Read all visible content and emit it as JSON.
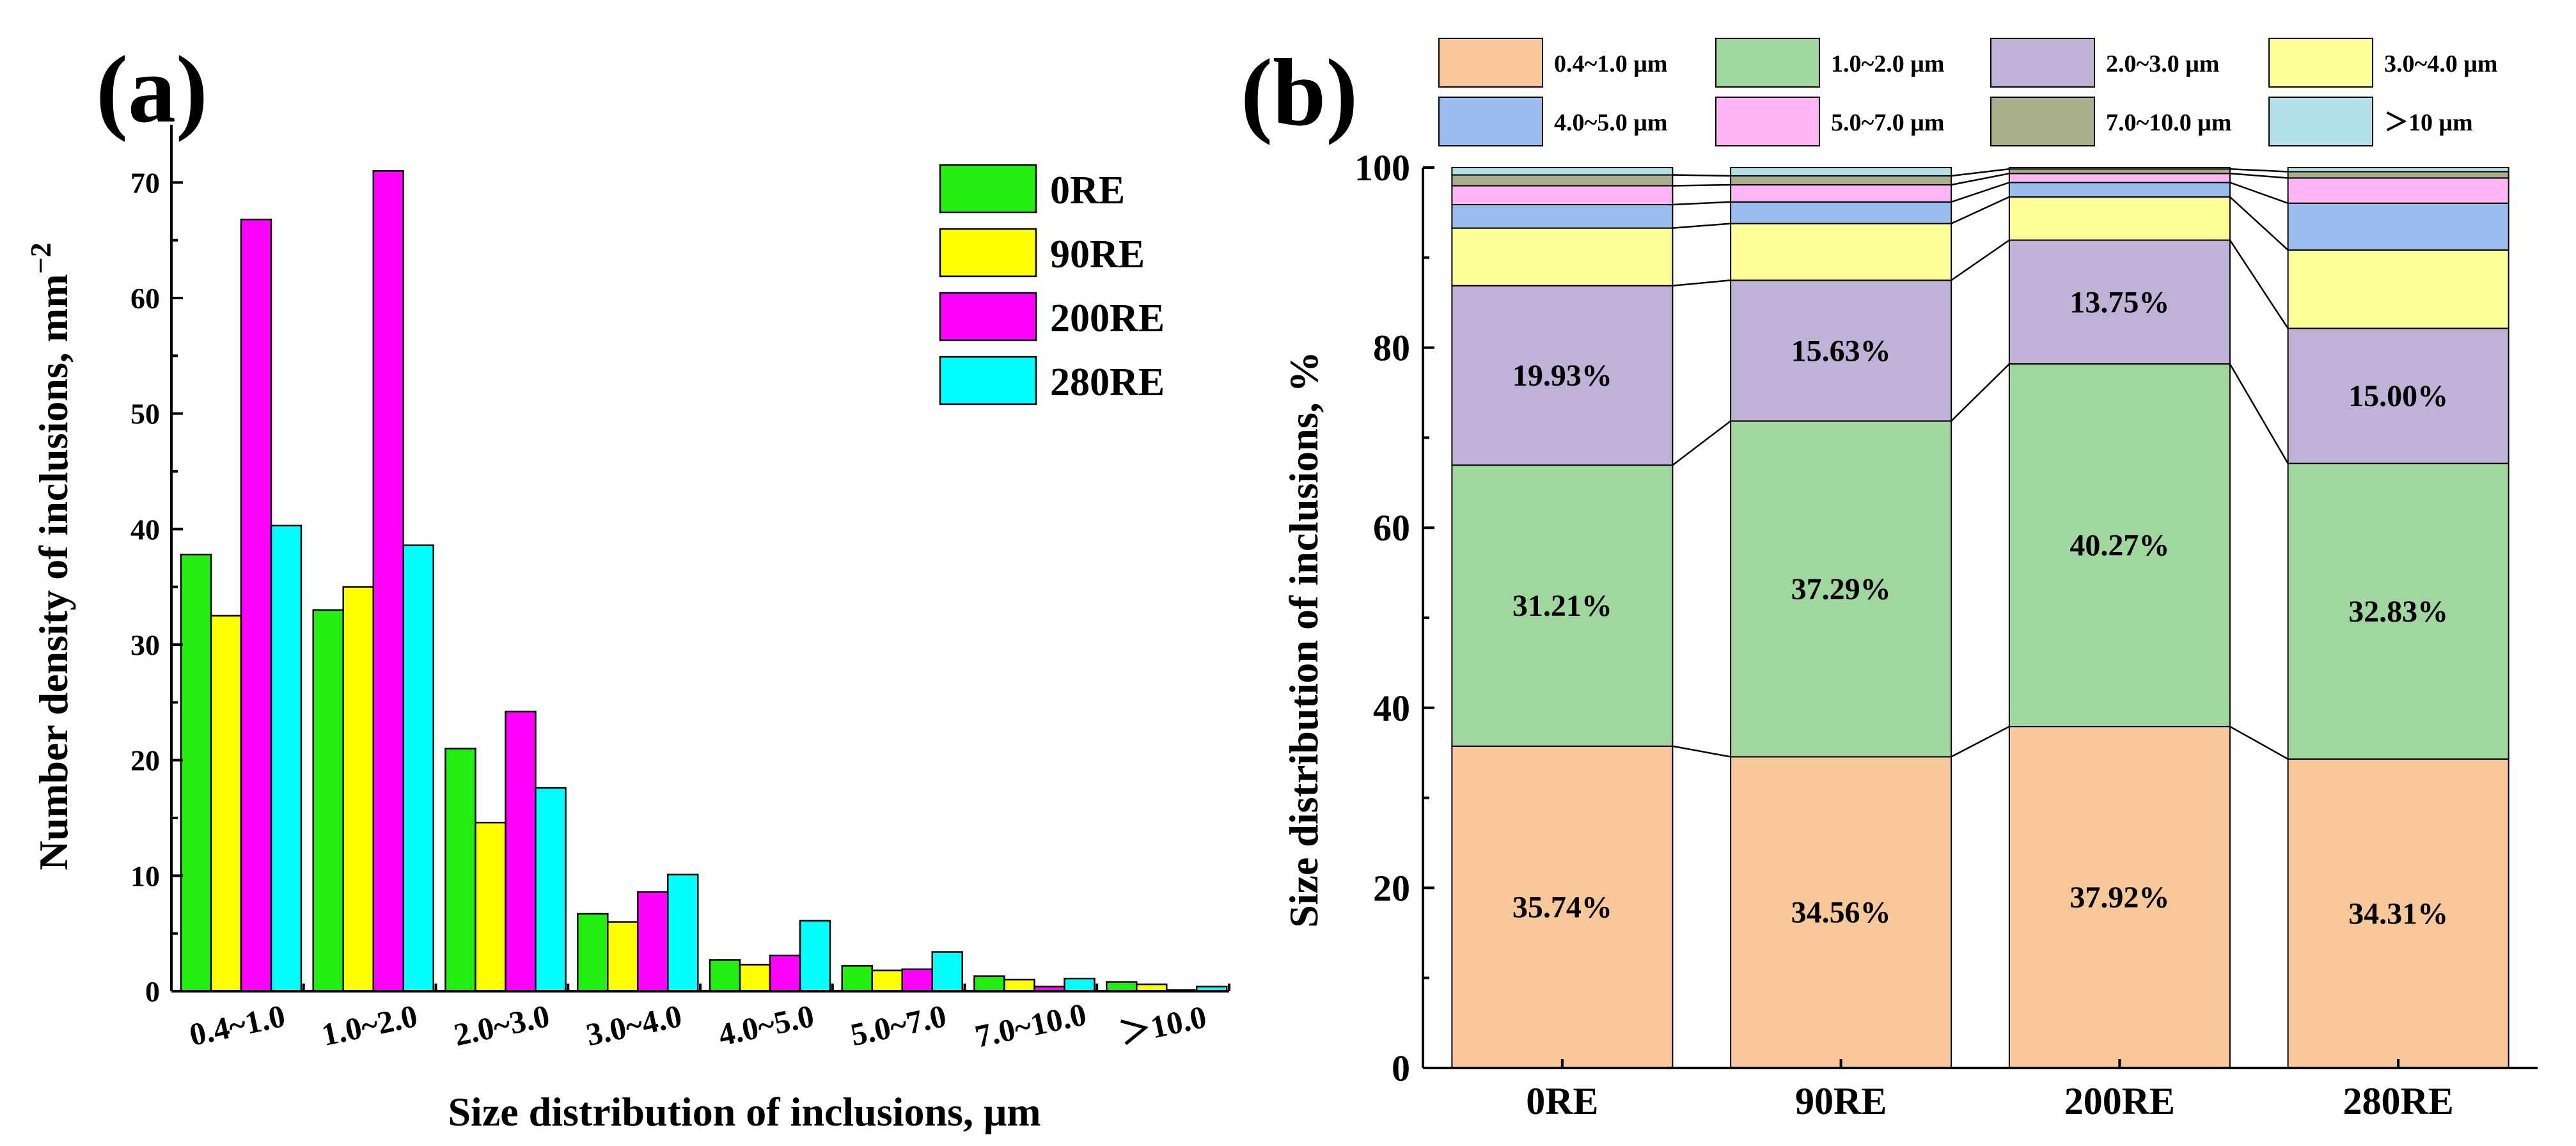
{
  "panels": {
    "a": "(a)",
    "b": "(b)"
  },
  "chart_data": [
    {
      "type": "bar",
      "panel": "(a)",
      "xlabel": "Size distribution of inclusions, μm",
      "ylabel": "Number density of inclusions, mm",
      "ylabel_sup": "−2",
      "ylim": [
        0,
        75
      ],
      "yticks": [
        0,
        10,
        20,
        30,
        40,
        50,
        60,
        70
      ],
      "categories": [
        "0.4~1.0",
        "1.0~2.0",
        "2.0~3.0",
        "3.0~4.0",
        "4.0~5.0",
        "5.0~7.0",
        "7.0~10.0",
        "＞10.0"
      ],
      "legend_position": "top-right",
      "series": [
        {
          "name": "0RE",
          "color": "#22ee11",
          "values": [
            37.8,
            33.0,
            21.0,
            6.7,
            2.7,
            2.2,
            1.3,
            0.8
          ]
        },
        {
          "name": "90RE",
          "color": "#ffff00",
          "values": [
            32.5,
            35.0,
            14.6,
            6.0,
            2.3,
            1.8,
            1.0,
            0.6
          ]
        },
        {
          "name": "200RE",
          "color": "#ff00ff",
          "values": [
            66.8,
            71.0,
            24.2,
            8.6,
            3.1,
            1.9,
            0.4,
            0.1
          ]
        },
        {
          "name": "280RE",
          "color": "#00ffff",
          "values": [
            40.3,
            38.6,
            17.6,
            10.1,
            6.1,
            3.4,
            1.1,
            0.4
          ]
        }
      ]
    },
    {
      "type": "stacked_bar",
      "panel": "(b)",
      "xlabel": "",
      "ylabel": "Size distribution of inclusions, %",
      "ylim": [
        0,
        100
      ],
      "yticks": [
        0,
        20,
        40,
        60,
        80,
        100
      ],
      "categories": [
        "0RE",
        "90RE",
        "200RE",
        "280RE"
      ],
      "legend_position": "top",
      "series": [
        {
          "name": "0.4~1.0 μm",
          "color": "#f8c79a",
          "values": [
            35.74,
            34.56,
            37.92,
            34.31
          ],
          "labels": [
            "35.74%",
            "34.56%",
            "37.92%",
            "34.31%"
          ]
        },
        {
          "name": "1.0~2.0 μm",
          "color": "#9fd79e",
          "values": [
            31.21,
            37.29,
            40.27,
            32.83
          ],
          "labels": [
            "31.21%",
            "37.29%",
            "40.27%",
            "32.83%"
          ]
        },
        {
          "name": "2.0~3.0 μm",
          "color": "#c0b2d6",
          "values": [
            19.93,
            15.63,
            13.75,
            15.0
          ],
          "labels": [
            "19.93%",
            "15.63%",
            "13.75%",
            "15.00%"
          ]
        },
        {
          "name": "3.0~4.0 μm",
          "color": "#ffff99",
          "values": [
            6.4,
            6.3,
            4.8,
            8.7
          ]
        },
        {
          "name": "4.0~5.0 μm",
          "color": "#9cbdf0",
          "values": [
            2.6,
            2.4,
            1.6,
            5.2
          ]
        },
        {
          "name": "5.0~7.0 μm",
          "color": "#ffb4f4",
          "values": [
            2.1,
            1.9,
            1.0,
            2.8
          ]
        },
        {
          "name": "7.0~10.0 μm",
          "color": "#a9ae8c",
          "values": [
            1.2,
            1.0,
            0.5,
            0.7
          ]
        },
        {
          "name": "＞10 μm",
          "color": "#b2e2e8",
          "values": [
            0.82,
            0.92,
            0.16,
            0.46
          ]
        }
      ]
    }
  ]
}
